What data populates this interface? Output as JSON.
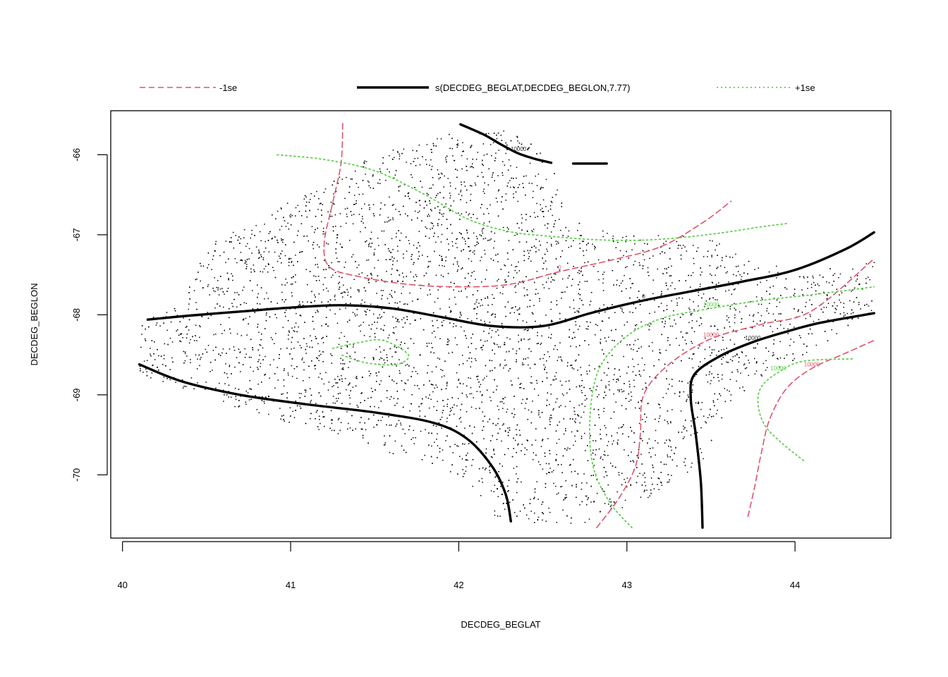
{
  "chart_data": {
    "type": "scatter",
    "title": "",
    "xlabel": "DECDEG_BEGLAT",
    "ylabel": "DECDEG_BEGLON",
    "xlim": [
      39.93,
      44.57
    ],
    "ylim": [
      -70.79,
      -65.45
    ],
    "x_ticks": [
      40,
      41,
      42,
      43,
      44
    ],
    "y_ticks": [
      -66,
      -67,
      -68,
      -69,
      -70
    ],
    "grid": false,
    "legend": {
      "placement": "top",
      "entries": [
        {
          "label": "-1se",
          "color": "#DF536B",
          "style": "dashed"
        },
        {
          "label": "s(DECDEG_BEGLAT,DECDEG_BEGLON,7.77)",
          "color": "#000000",
          "style": "solid"
        },
        {
          "label": "+1se",
          "color": "#61D04F",
          "style": "dotted"
        }
      ]
    },
    "contour_label_values": [
      "0",
      "-10000",
      "10000"
    ],
    "series": [
      {
        "name": "s(DECDEG_BEGLAT,DECDEG_BEGLON,7.77)",
        "color": "#000000",
        "style": "solid",
        "contours": [
          {
            "label": "-10000",
            "x": [
              42.01,
              42.15,
              42.25,
              42.35,
              42.45,
              42.55
            ],
            "y": [
              -65.62,
              -65.75,
              -65.87,
              -65.98,
              -66.05,
              -66.1
            ]
          },
          {
            "label": "",
            "x": [
              42.68,
              42.88
            ],
            "y": [
              -66.11,
              -66.11
            ]
          },
          {
            "label": "0",
            "x": [
              40.15,
              40.4,
              40.7,
              41.0,
              41.3,
              41.6,
              41.9,
              42.2,
              42.5,
              42.8,
              43.1,
              43.4,
              43.7,
              44.0,
              44.3,
              44.47
            ],
            "y": [
              -68.06,
              -68.01,
              -67.96,
              -67.91,
              -67.88,
              -67.92,
              -68.03,
              -68.14,
              -68.14,
              -67.97,
              -67.82,
              -67.7,
              -67.58,
              -67.44,
              -67.18,
              -66.97
            ]
          },
          {
            "label": "",
            "x": [
              40.1,
              40.35,
              40.7,
              41.1,
              41.5,
              41.85,
              42.05,
              42.2,
              42.28,
              42.31
            ],
            "y": [
              -68.62,
              -68.83,
              -69.0,
              -69.12,
              -69.22,
              -69.35,
              -69.55,
              -69.9,
              -70.25,
              -70.58
            ]
          },
          {
            "label": "10000",
            "x": [
              43.45,
              43.44,
              43.41,
              43.38,
              43.4,
              43.55,
              43.75,
              43.95,
              44.15,
              44.47
            ],
            "y": [
              -70.66,
              -70.1,
              -69.5,
              -69.05,
              -68.75,
              -68.52,
              -68.34,
              -68.21,
              -68.1,
              -67.98
            ]
          }
        ]
      },
      {
        "name": "-1se",
        "color": "#DF536B",
        "style": "dashed",
        "contours": [
          {
            "label": "0",
            "x": [
              41.31,
              41.3,
              41.25,
              41.2,
              41.23,
              41.4,
              41.7,
              42.0,
              42.3,
              42.6,
              42.9,
              43.2,
              43.45,
              43.62
            ],
            "y": [
              -65.61,
              -66.1,
              -66.6,
              -67.1,
              -67.4,
              -67.52,
              -67.62,
              -67.65,
              -67.62,
              -67.46,
              -67.32,
              -67.15,
              -66.85,
              -66.58
            ]
          },
          {
            "label": "10000",
            "x": [
              42.82,
              42.95,
              43.05,
              43.08,
              43.1,
              43.25,
              43.5,
              43.8,
              44.1,
              44.47
            ],
            "y": [
              -70.66,
              -70.3,
              -69.9,
              -69.5,
              -69.0,
              -68.62,
              -68.3,
              -68.12,
              -67.95,
              -67.3
            ]
          },
          {
            "label": "10000",
            "x": [
              43.72,
              43.76,
              43.8,
              43.85,
              43.95,
              44.1,
              44.3,
              44.47
            ],
            "y": [
              -70.52,
              -70.15,
              -69.72,
              -69.3,
              -68.92,
              -68.67,
              -68.48,
              -68.32
            ]
          }
        ]
      },
      {
        "name": "+1se",
        "color": "#61D04F",
        "style": "dotted",
        "contours": [
          {
            "label": "",
            "x": [
              40.92,
              41.2,
              41.5,
              41.8,
              42.05,
              42.3,
              42.55,
              42.8,
              43.05,
              43.3,
              43.55,
              43.8,
              43.95
            ],
            "y": [
              -66.0,
              -66.06,
              -66.2,
              -66.5,
              -66.8,
              -66.96,
              -67.02,
              -67.06,
              -67.07,
              -67.04,
              -66.98,
              -66.9,
              -66.86
            ]
          },
          {
            "label": "10000",
            "x": [
              43.03,
              42.9,
              42.8,
              42.78,
              42.83,
              42.98,
              43.2,
              43.5,
              43.8,
              44.1,
              44.47
            ],
            "y": [
              -70.66,
              -70.35,
              -69.9,
              -69.3,
              -68.7,
              -68.3,
              -68.05,
              -67.92,
              -67.82,
              -67.75,
              -67.65
            ]
          },
          {
            "label": "10000",
            "x": [
              44.05,
              43.92,
              43.82,
              43.78,
              43.8,
              43.9,
              44.05,
              44.35
            ],
            "y": [
              -69.82,
              -69.6,
              -69.38,
              -69.12,
              -68.9,
              -68.72,
              -68.58,
              -68.55
            ]
          },
          {
            "label": "",
            "x": [
              41.25,
              41.4,
              41.55,
              41.7,
              41.63,
              41.45,
              41.3
            ],
            "y": [
              -68.42,
              -68.35,
              -68.32,
              -68.5,
              -68.62,
              -68.6,
              -68.5
            ]
          }
        ]
      }
    ],
    "point_series": {
      "name": "sample locations",
      "color": "#000000",
      "count": 5500,
      "outline": [
        [
          40.1,
          -68.1
        ],
        [
          40.2,
          -68.0
        ],
        [
          40.35,
          -67.85
        ],
        [
          40.4,
          -67.6
        ],
        [
          40.45,
          -67.3
        ],
        [
          40.55,
          -67.05
        ],
        [
          40.7,
          -66.85
        ],
        [
          40.85,
          -66.75
        ],
        [
          41.0,
          -66.55
        ],
        [
          41.2,
          -66.4
        ],
        [
          41.35,
          -66.15
        ],
        [
          41.5,
          -66.0
        ],
        [
          41.75,
          -65.85
        ],
        [
          42.0,
          -65.7
        ],
        [
          42.2,
          -65.65
        ],
        [
          42.4,
          -65.8
        ],
        [
          42.55,
          -66.1
        ],
        [
          42.6,
          -66.5
        ],
        [
          42.65,
          -66.8
        ],
        [
          42.8,
          -66.9
        ],
        [
          43.0,
          -67.0
        ],
        [
          43.3,
          -66.95
        ],
        [
          43.5,
          -67.05
        ],
        [
          43.7,
          -67.3
        ],
        [
          44.05,
          -67.4
        ],
        [
          44.3,
          -67.4
        ],
        [
          44.47,
          -67.3
        ],
        [
          44.47,
          -67.95
        ],
        [
          44.25,
          -68.3
        ],
        [
          44.0,
          -68.55
        ],
        [
          43.8,
          -68.8
        ],
        [
          43.6,
          -69.1
        ],
        [
          43.5,
          -69.7
        ],
        [
          43.3,
          -70.1
        ],
        [
          43.0,
          -70.4
        ],
        [
          42.8,
          -70.6
        ],
        [
          42.5,
          -70.62
        ],
        [
          42.2,
          -70.5
        ],
        [
          42.05,
          -70.1
        ],
        [
          41.8,
          -69.85
        ],
        [
          41.55,
          -69.7
        ],
        [
          41.3,
          -69.5
        ],
        [
          41.0,
          -69.35
        ],
        [
          40.6,
          -69.1
        ],
        [
          40.3,
          -68.9
        ],
        [
          40.1,
          -68.75
        ]
      ]
    }
  }
}
